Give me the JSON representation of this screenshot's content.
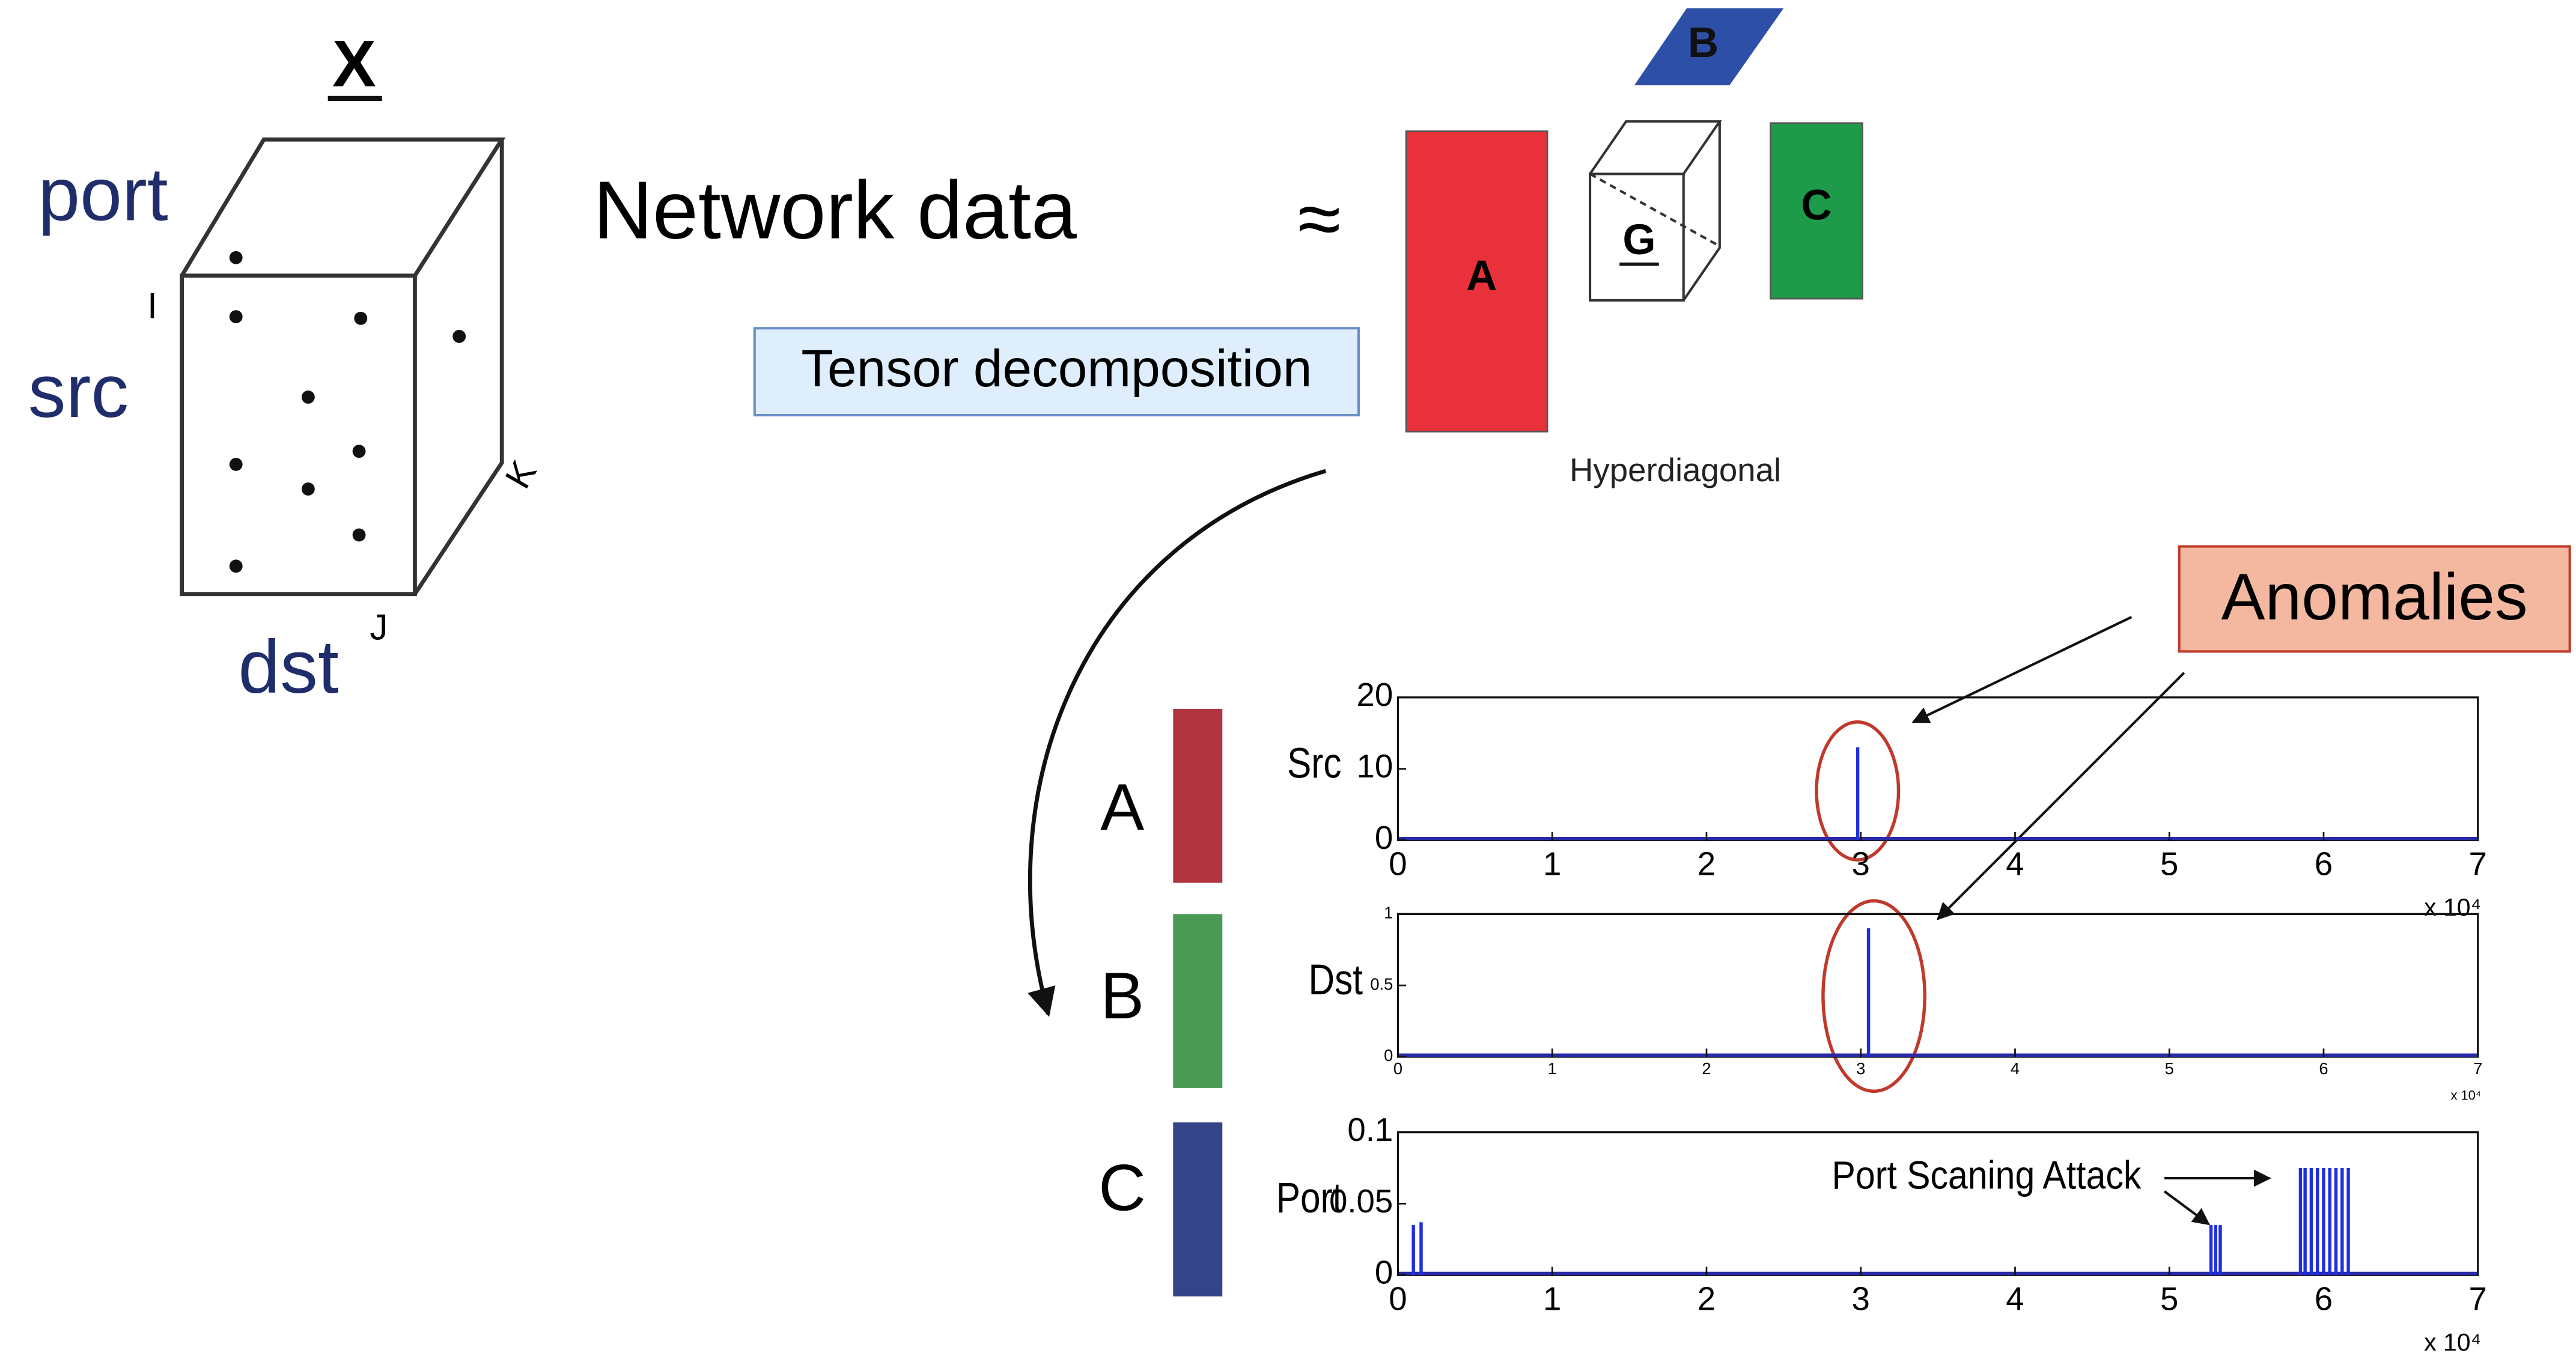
{
  "tensor": {
    "title": "X",
    "modes": [
      "port",
      "src",
      "dst"
    ],
    "indices": [
      "I",
      "J",
      "K"
    ]
  },
  "network_label": "Network data",
  "approx": "≈",
  "method": "Tensor decomposition",
  "factors": {
    "A": "A",
    "B": "B",
    "C": "C",
    "G": "G"
  },
  "core_caption": "Hyperdiagonal",
  "anomalies": "Anomalies",
  "factor_labels": [
    "A",
    "B",
    "C"
  ],
  "plots": [
    {
      "ylabel": "Src",
      "xlim": [
        0,
        7
      ],
      "xticks": [
        0,
        1,
        2,
        3,
        4,
        5,
        6,
        7
      ],
      "ylim": [
        0,
        20
      ],
      "yticks": [
        0,
        10,
        20
      ],
      "multiplier": "x 10⁴",
      "spikes": {
        "x": [
          2.98
        ],
        "values": [
          13
        ]
      }
    },
    {
      "ylabel": "Dst",
      "xlim": [
        0,
        7
      ],
      "xticks": [
        0,
        1,
        2,
        3,
        4,
        5,
        6,
        7
      ],
      "ylim": [
        0,
        1
      ],
      "yticks": [
        0,
        0.5,
        1
      ],
      "multiplier": "x 10⁴",
      "spikes": {
        "x": [
          3.05
        ],
        "values": [
          0.9
        ]
      }
    },
    {
      "ylabel": "Port",
      "xlim": [
        0,
        7
      ],
      "xticks": [
        0,
        1,
        2,
        3,
        4,
        5,
        6,
        7
      ],
      "ylim": [
        0,
        0.1
      ],
      "yticks": [
        0,
        0.05,
        0.1
      ],
      "multiplier": "x 10⁴",
      "annotation": "Port Scaning Attack",
      "spikes": {
        "x": [
          0.1,
          0.15,
          5.27,
          5.3,
          5.33,
          5.85,
          5.88,
          5.92,
          5.96,
          6.0,
          6.04,
          6.08,
          6.12,
          6.16
        ],
        "values": [
          0.035,
          0.037,
          0.035,
          0.035,
          0.035,
          0.075,
          0.075,
          0.075,
          0.075,
          0.075,
          0.075,
          0.075,
          0.075,
          0.075
        ]
      }
    }
  ]
}
